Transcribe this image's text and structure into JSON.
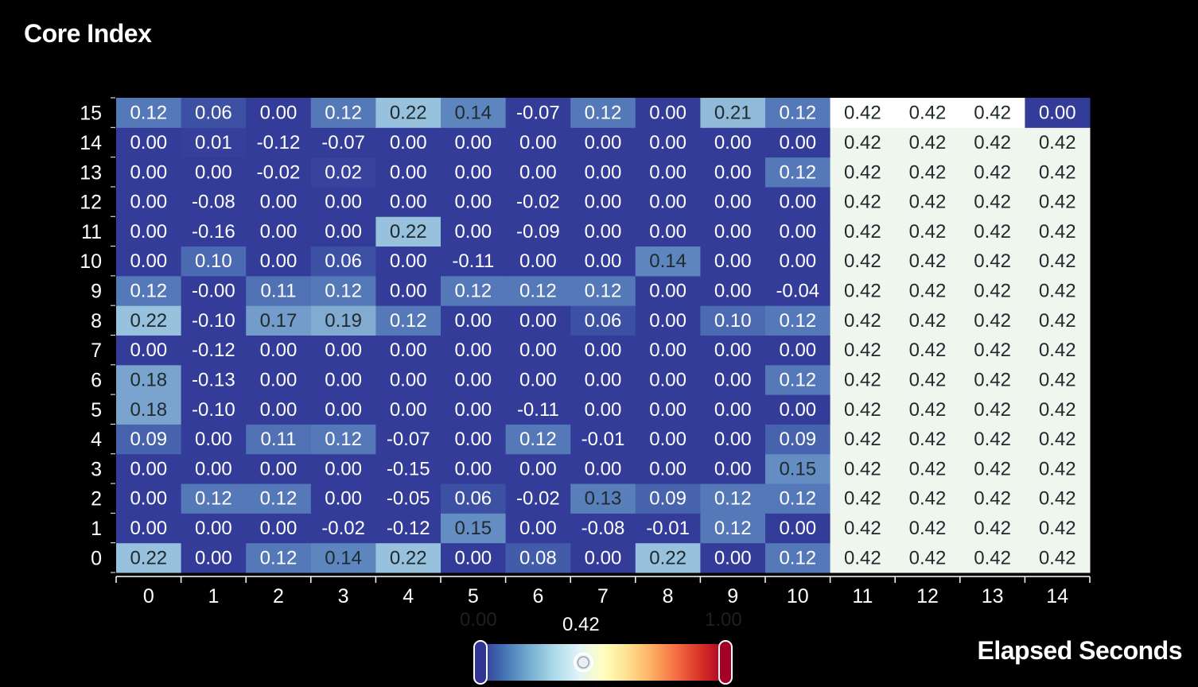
{
  "chart_data": {
    "type": "heatmap",
    "ylabel": "Core Index",
    "xlabel": "Elapsed Seconds",
    "x": [
      0,
      1,
      2,
      3,
      4,
      5,
      6,
      7,
      8,
      9,
      10,
      11,
      12,
      13,
      14
    ],
    "y": [
      0,
      1,
      2,
      3,
      4,
      5,
      6,
      7,
      8,
      9,
      10,
      11,
      12,
      13,
      14,
      15
    ],
    "values": [
      [
        "0.22",
        "0.00",
        "0.12",
        "0.14",
        "0.22",
        "0.00",
        "0.08",
        "0.00",
        "0.22",
        "0.00",
        "0.12",
        "0.42",
        "0.42",
        "0.42",
        "0.42"
      ],
      [
        "0.00",
        "0.00",
        "0.00",
        "-0.02",
        "-0.12",
        "0.15",
        "0.00",
        "-0.08",
        "-0.01",
        "0.12",
        "0.00",
        "0.42",
        "0.42",
        "0.42",
        "0.42"
      ],
      [
        "0.00",
        "0.12",
        "0.12",
        "0.00",
        "-0.05",
        "0.06",
        "-0.02",
        "0.13",
        "0.09",
        "0.12",
        "0.12",
        "0.42",
        "0.42",
        "0.42",
        "0.42"
      ],
      [
        "0.00",
        "0.00",
        "0.00",
        "0.00",
        "-0.15",
        "0.00",
        "0.00",
        "0.00",
        "0.00",
        "0.00",
        "0.15",
        "0.42",
        "0.42",
        "0.42",
        "0.42"
      ],
      [
        "0.09",
        "0.00",
        "0.11",
        "0.12",
        "-0.07",
        "0.00",
        "0.12",
        "-0.01",
        "0.00",
        "0.00",
        "0.09",
        "0.42",
        "0.42",
        "0.42",
        "0.42"
      ],
      [
        "0.18",
        "-0.10",
        "0.00",
        "0.00",
        "0.00",
        "0.00",
        "-0.11",
        "0.00",
        "0.00",
        "0.00",
        "0.00",
        "0.42",
        "0.42",
        "0.42",
        "0.42"
      ],
      [
        "0.18",
        "-0.13",
        "0.00",
        "0.00",
        "0.00",
        "0.00",
        "0.00",
        "0.00",
        "0.00",
        "0.00",
        "0.12",
        "0.42",
        "0.42",
        "0.42",
        "0.42"
      ],
      [
        "0.00",
        "-0.12",
        "0.00",
        "0.00",
        "0.00",
        "0.00",
        "0.00",
        "0.00",
        "0.00",
        "0.00",
        "0.00",
        "0.42",
        "0.42",
        "0.42",
        "0.42"
      ],
      [
        "0.22",
        "-0.10",
        "0.17",
        "0.19",
        "0.12",
        "0.00",
        "0.00",
        "0.06",
        "0.00",
        "0.10",
        "0.12",
        "0.42",
        "0.42",
        "0.42",
        "0.42"
      ],
      [
        "0.12",
        "-0.00",
        "0.11",
        "0.12",
        "0.00",
        "0.12",
        "0.12",
        "0.12",
        "0.00",
        "0.00",
        "-0.04",
        "0.42",
        "0.42",
        "0.42",
        "0.42"
      ],
      [
        "0.00",
        "0.10",
        "0.00",
        "0.06",
        "0.00",
        "-0.11",
        "0.00",
        "0.00",
        "0.14",
        "0.00",
        "0.00",
        "0.42",
        "0.42",
        "0.42",
        "0.42"
      ],
      [
        "0.00",
        "-0.16",
        "0.00",
        "0.00",
        "0.22",
        "0.00",
        "-0.09",
        "0.00",
        "0.00",
        "0.00",
        "0.00",
        "0.42",
        "0.42",
        "0.42",
        "0.42"
      ],
      [
        "0.00",
        "-0.08",
        "0.00",
        "0.00",
        "0.00",
        "0.00",
        "-0.02",
        "0.00",
        "0.00",
        "0.00",
        "0.00",
        "0.42",
        "0.42",
        "0.42",
        "0.42"
      ],
      [
        "0.00",
        "0.00",
        "-0.02",
        "0.02",
        "0.00",
        "0.00",
        "0.00",
        "0.00",
        "0.00",
        "0.00",
        "0.12",
        "0.42",
        "0.42",
        "0.42",
        "0.42"
      ],
      [
        "0.00",
        "0.01",
        "-0.12",
        "-0.07",
        "0.00",
        "0.00",
        "0.00",
        "0.00",
        "0.00",
        "0.00",
        "0.00",
        "0.42",
        "0.42",
        "0.42",
        "0.42"
      ],
      [
        "0.12",
        "0.06",
        "0.00",
        "0.12",
        "0.22",
        "0.14",
        "-0.07",
        "0.12",
        "0.00",
        "0.21",
        "0.12",
        "0.42",
        "0.42",
        "0.42",
        "0.00"
      ]
    ],
    "color_scale": {
      "range": [
        0.0,
        1.0
      ],
      "threshold": 0.42,
      "min_label": "0.00",
      "max_label": "1.00",
      "threshold_label": "0.42",
      "colors": [
        "#313695",
        "#4575b4",
        "#74add1",
        "#abd9e9",
        "#e0f3f8",
        "#ffffbf",
        "#fee090",
        "#fdae61",
        "#f46d43",
        "#d73027",
        "#a50026"
      ]
    }
  }
}
